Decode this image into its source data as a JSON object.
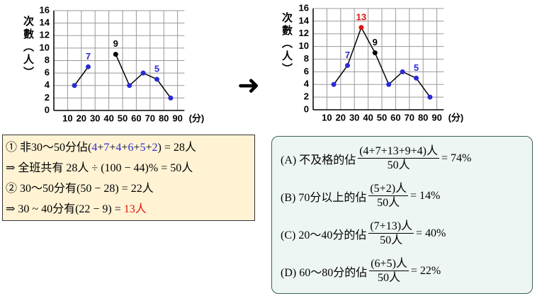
{
  "chart_data": [
    {
      "type": "line",
      "y_label": "次數（人）",
      "x_unit": "(分)",
      "x": [
        15,
        25,
        35,
        45,
        55,
        65,
        75,
        85
      ],
      "series": [
        {
          "color": "#000000",
          "values": [
            4,
            7,
            null,
            9,
            4,
            6,
            5,
            2
          ],
          "point_colors": [
            "#2b2bd6",
            "#2b2bd6",
            null,
            "#000000",
            "#2b2bd6",
            "#2b2bd6",
            "#2b2bd6",
            "#2b2bd6"
          ],
          "value_labels": [
            null,
            "7",
            null,
            "9",
            null,
            null,
            "5",
            null
          ]
        }
      ],
      "xlim": [
        0,
        100
      ],
      "ylim": [
        0,
        16
      ],
      "xticks": [
        10,
        20,
        30,
        40,
        50,
        60,
        70,
        80,
        90
      ],
      "yticks": [
        0,
        2,
        4,
        6,
        8,
        10,
        12,
        14,
        16
      ],
      "grid": true
    },
    {
      "type": "line",
      "y_label": "次數（人）",
      "x_unit": "(分)",
      "x": [
        15,
        25,
        35,
        45,
        55,
        65,
        75,
        85
      ],
      "series": [
        {
          "color": "#000000",
          "values": [
            4,
            7,
            13,
            9,
            4,
            6,
            5,
            2
          ],
          "point_colors": [
            "#2b2bd6",
            "#2b2bd6",
            "#e01010",
            "#000000",
            "#2b2bd6",
            "#2b2bd6",
            "#2b2bd6",
            "#2b2bd6"
          ],
          "value_labels": [
            null,
            "7",
            "13",
            "9",
            null,
            null,
            "5",
            null
          ]
        }
      ],
      "xlim": [
        0,
        100
      ],
      "ylim": [
        0,
        16
      ],
      "xticks": [
        10,
        20,
        30,
        40,
        50,
        60,
        70,
        80,
        90
      ],
      "yticks": [
        0,
        2,
        4,
        6,
        8,
        10,
        12,
        14,
        16
      ],
      "grid": true
    }
  ],
  "arrow": "➜",
  "left_box": {
    "lines": [
      [
        {
          "text": "① 非30～50分佔("
        },
        {
          "text": "4",
          "color": "#2b2bd6"
        },
        {
          "text": "+"
        },
        {
          "text": "7",
          "color": "#2b2bd6"
        },
        {
          "text": "+"
        },
        {
          "text": "4",
          "color": "#2b2bd6"
        },
        {
          "text": "+"
        },
        {
          "text": "6",
          "color": "#2b2bd6"
        },
        {
          "text": "+"
        },
        {
          "text": "5",
          "color": "#2b2bd6"
        },
        {
          "text": "+"
        },
        {
          "text": "2",
          "color": "#2b2bd6"
        },
        {
          "text": ") = 28人"
        }
      ],
      [
        {
          "text": "⇒ 全班共有 28人 ÷ (100 − 44)% = 50人"
        }
      ],
      [
        {
          "text": "② 30～50分有(50 − 28) = 22人"
        }
      ],
      [
        {
          "text": "⇒ 30 ~ 40分有(22 − 9) = "
        },
        {
          "text": "13人",
          "color": "#e01010"
        }
      ]
    ]
  },
  "right_box": {
    "items": [
      {
        "label": "(A) 不及格的佔",
        "numerator": "(4+7+13+9+4)人",
        "denominator": "50人",
        "result": "= 74%"
      },
      {
        "label": "(B) 70分以上的佔",
        "numerator": "(5+2)人",
        "denominator": "50人",
        "result": "= 14%"
      },
      {
        "label": "(C) 20～40分的佔",
        "numerator": "(7+13)人",
        "denominator": "50人",
        "result": "= 40%"
      },
      {
        "label": "(D) 60～80分的佔",
        "numerator": "(6+5)人",
        "denominator": "50人",
        "result": "= 22%"
      }
    ]
  }
}
